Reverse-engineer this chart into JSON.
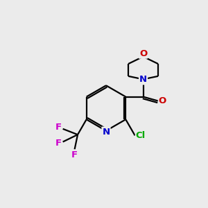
{
  "background_color": "#ebebeb",
  "bond_color": "#000000",
  "atom_colors": {
    "N": "#0000cc",
    "O": "#cc0000",
    "Cl": "#00aa00",
    "F": "#cc00cc"
  },
  "figsize": [
    3.0,
    3.0
  ],
  "dpi": 100,
  "lw": 1.6,
  "sep": 0.09,
  "fs": 9.5
}
